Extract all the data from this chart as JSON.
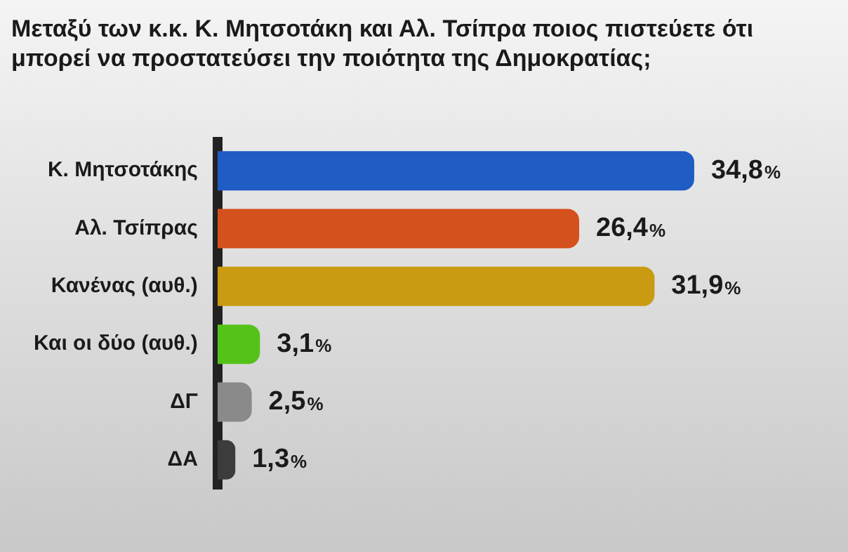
{
  "chart_data": {
    "type": "bar",
    "orientation": "horizontal",
    "title": "Μεταξύ των κ.κ. Κ. Μητσοτάκη και Αλ. Τσίπρα ποιος πιστεύετε ότι μπορεί να προστατεύσει την ποιότητα της Δημοκρατίας;",
    "categories": [
      "Κ. Μητσοτάκης",
      "Αλ. Τσίπρας",
      "Κανένας (αυθ.)",
      "Και οι δύο (αυθ.)",
      "ΔΓ",
      "ΔΑ"
    ],
    "values": [
      34.8,
      26.4,
      31.9,
      3.1,
      2.5,
      1.3
    ],
    "colors": [
      "#1f5cc4",
      "#d4501c",
      "#c99a12",
      "#55c21a",
      "#8a8a8a",
      "#3c3c3c"
    ],
    "value_labels": [
      "34,8%",
      "26,4%",
      "31,9%",
      "3,1%",
      "2,5%",
      "1,3%"
    ],
    "tick_labels": "y",
    "legend": false
  }
}
